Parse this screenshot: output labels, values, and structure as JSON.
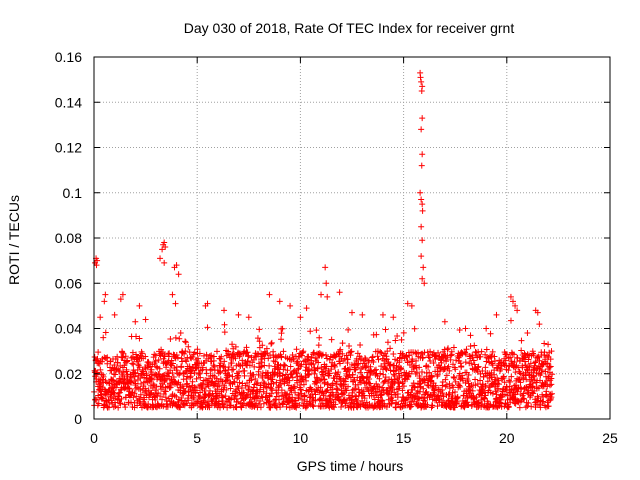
{
  "chart_data": {
    "type": "scatter",
    "title": "Day 030 of 2018, Rate Of TEC Index for receiver grnt",
    "xlabel": "GPS time / hours",
    "ylabel": "ROTI / TECUs",
    "xlim": [
      0,
      25
    ],
    "ylim": [
      0,
      0.16
    ],
    "xticks": [
      0,
      5,
      10,
      15,
      20,
      25
    ],
    "xtick_labels": [
      "0",
      "5",
      "10",
      "15",
      "20",
      "25"
    ],
    "yticks": [
      0,
      0.02,
      0.04,
      0.06,
      0.08,
      0.1,
      0.12,
      0.14,
      0.16
    ],
    "ytick_labels": [
      "0",
      "0.02",
      "0.04",
      "0.06",
      "0.08",
      "0.1",
      "0.12",
      "0.14",
      "0.16"
    ],
    "grid": true,
    "marker": "+",
    "color": "#ff0000",
    "series": [
      {
        "name": "ROTI",
        "band": {
          "x_range": [
            0.0,
            22.2
          ],
          "typical_y": [
            0.005,
            0.03
          ]
        },
        "points": [
          [
            0.05,
            0.069
          ],
          [
            0.1,
            0.071
          ],
          [
            0.15,
            0.07
          ],
          [
            0.12,
            0.068
          ],
          [
            0.3,
            0.045
          ],
          [
            0.5,
            0.052
          ],
          [
            0.55,
            0.055
          ],
          [
            1.0,
            0.046
          ],
          [
            1.3,
            0.053
          ],
          [
            1.4,
            0.055
          ],
          [
            2.0,
            0.043
          ],
          [
            2.2,
            0.05
          ],
          [
            2.5,
            0.044
          ],
          [
            3.2,
            0.071
          ],
          [
            3.3,
            0.075
          ],
          [
            3.35,
            0.077
          ],
          [
            3.4,
            0.078
          ],
          [
            3.45,
            0.076
          ],
          [
            3.4,
            0.069
          ],
          [
            3.9,
            0.067
          ],
          [
            4.0,
            0.068
          ],
          [
            4.1,
            0.064
          ],
          [
            3.8,
            0.055
          ],
          [
            3.95,
            0.051
          ],
          [
            5.4,
            0.05
          ],
          [
            5.5,
            0.051
          ],
          [
            6.3,
            0.048
          ],
          [
            7.0,
            0.046
          ],
          [
            7.5,
            0.045
          ],
          [
            8.5,
            0.055
          ],
          [
            9.0,
            0.052
          ],
          [
            9.5,
            0.05
          ],
          [
            10.0,
            0.045
          ],
          [
            10.3,
            0.049
          ],
          [
            11.0,
            0.055
          ],
          [
            11.2,
            0.067
          ],
          [
            11.25,
            0.06
          ],
          [
            11.3,
            0.054
          ],
          [
            11.9,
            0.056
          ],
          [
            12.5,
            0.047
          ],
          [
            13.0,
            0.046
          ],
          [
            14.0,
            0.046
          ],
          [
            14.5,
            0.045
          ],
          [
            15.2,
            0.051
          ],
          [
            15.4,
            0.05
          ],
          [
            15.8,
            0.153
          ],
          [
            15.82,
            0.151
          ],
          [
            15.85,
            0.149
          ],
          [
            15.9,
            0.147
          ],
          [
            15.88,
            0.145
          ],
          [
            15.9,
            0.133
          ],
          [
            15.85,
            0.128
          ],
          [
            15.9,
            0.117
          ],
          [
            15.88,
            0.112
          ],
          [
            15.8,
            0.1
          ],
          [
            15.85,
            0.097
          ],
          [
            15.9,
            0.095
          ],
          [
            15.92,
            0.092
          ],
          [
            15.85,
            0.085
          ],
          [
            15.9,
            0.079
          ],
          [
            15.95,
            0.067
          ],
          [
            15.9,
            0.062
          ],
          [
            16.0,
            0.06
          ],
          [
            15.85,
            0.072
          ],
          [
            17.0,
            0.043
          ],
          [
            18.0,
            0.04
          ],
          [
            19.0,
            0.04
          ],
          [
            19.5,
            0.046
          ],
          [
            20.2,
            0.054
          ],
          [
            20.3,
            0.052
          ],
          [
            20.4,
            0.05
          ],
          [
            20.5,
            0.048
          ],
          [
            21.0,
            0.038
          ],
          [
            21.4,
            0.048
          ],
          [
            21.5,
            0.047
          ],
          [
            22.0,
            0.033
          ]
        ]
      }
    ]
  }
}
